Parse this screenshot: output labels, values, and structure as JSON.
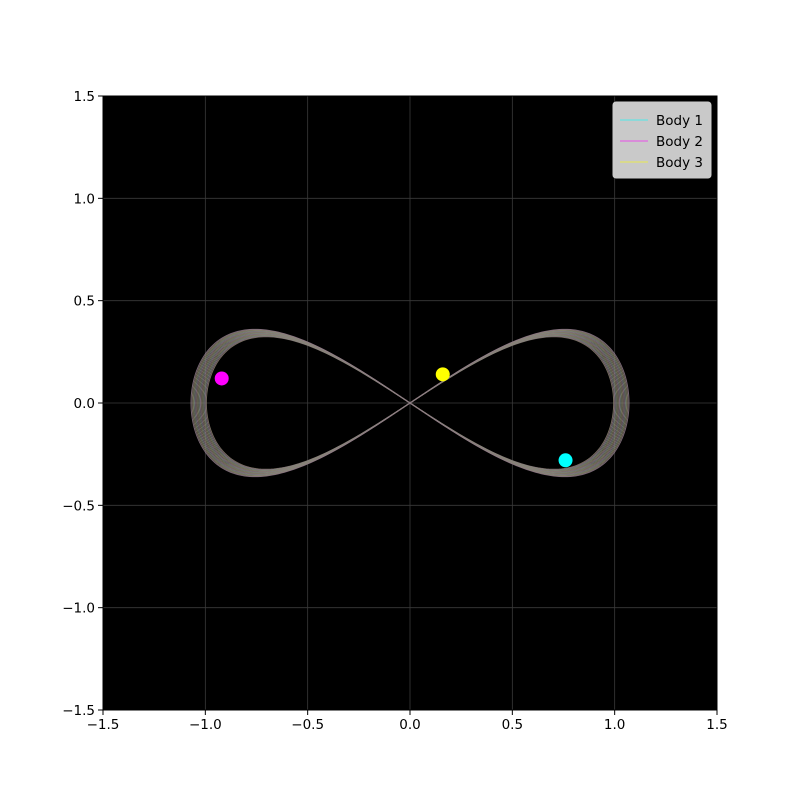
{
  "chart_data": {
    "type": "line",
    "title": "",
    "xlabel": "",
    "ylabel": "",
    "xlim": [
      -1.5,
      1.5
    ],
    "ylim": [
      -1.5,
      1.5
    ],
    "xticks": [
      "−1.5",
      "−1.0",
      "−0.5",
      "0.0",
      "0.5",
      "1.0",
      "1.5"
    ],
    "yticks": [
      "−1.5",
      "−1.0",
      "−0.5",
      "0.0",
      "0.5",
      "1.0",
      "1.5"
    ],
    "xtick_values": [
      -1.5,
      -1.0,
      -0.5,
      0.0,
      0.5,
      1.0,
      1.5
    ],
    "ytick_values": [
      -1.5,
      -1.0,
      -0.5,
      0.0,
      0.5,
      1.0,
      1.5
    ],
    "grid": true,
    "background": "#000000",
    "legend_position": "top-right",
    "series": [
      {
        "name": "Body 1",
        "color": "#00ffff",
        "current_position": [
          0.76,
          -0.28
        ]
      },
      {
        "name": "Body 2",
        "color": "#ff00ff",
        "current_position": [
          -0.92,
          0.12
        ]
      },
      {
        "name": "Body 3",
        "color": "#ffff00",
        "current_position": [
          0.16,
          0.14
        ]
      }
    ],
    "trajectory": {
      "shape": "figure-eight",
      "x_extent": [
        -1.07,
        1.07
      ],
      "y_extent": [
        -0.36,
        0.36
      ],
      "trail_color": "#8a8070"
    }
  }
}
